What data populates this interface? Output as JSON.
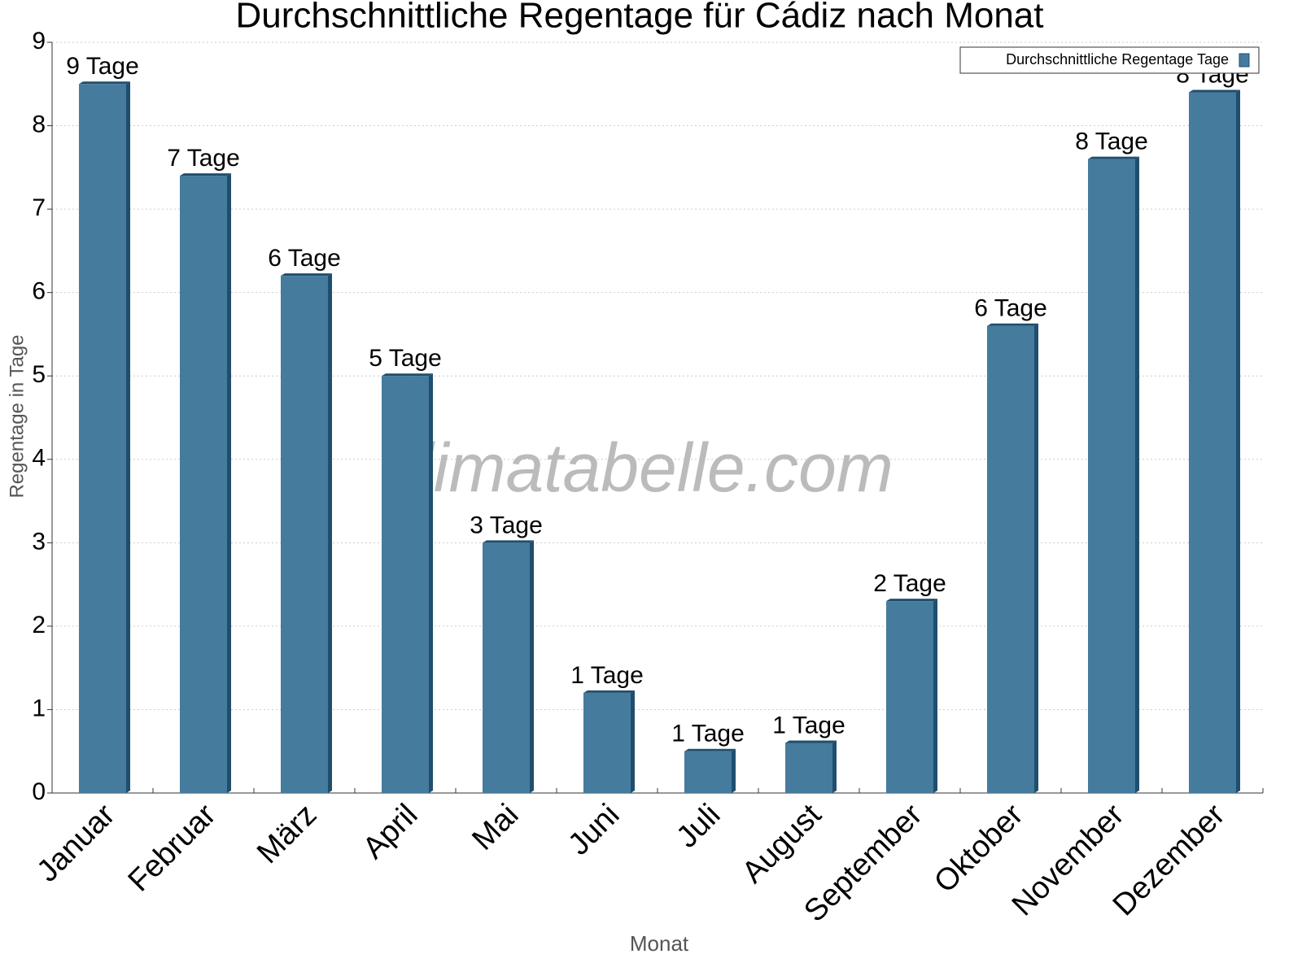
{
  "chart_data": {
    "type": "bar",
    "title": "Durchschnittliche Regentage für Cádiz nach Monat",
    "x_label": "Monat",
    "y_label": "Regentage in Tage",
    "watermark": "klimatabelle.com",
    "categories": [
      "Januar",
      "Februar",
      "März",
      "April",
      "Mai",
      "Juni",
      "Juli",
      "August",
      "September",
      "Oktober",
      "November",
      "Dezember"
    ],
    "series": [
      {
        "name": "Durchschnittliche Regentage Tage",
        "color": "#457b9d",
        "values": [
          8.5,
          7.4,
          6.2,
          5.0,
          3.0,
          1.2,
          0.5,
          0.6,
          2.3,
          5.6,
          7.6,
          8.4
        ],
        "value_labels": [
          "9 Tage",
          "7 Tage",
          "6 Tage",
          "5 Tage",
          "3 Tage",
          "1 Tage",
          "1 Tage",
          "1 Tage",
          "2 Tage",
          "6 Tage",
          "8 Tage",
          "8 Tage"
        ]
      }
    ],
    "ylim": [
      0,
      9
    ],
    "yticks": [
      0,
      1,
      2,
      3,
      4,
      5,
      6,
      7,
      8,
      9
    ],
    "grid": true,
    "legend": "top-right"
  }
}
